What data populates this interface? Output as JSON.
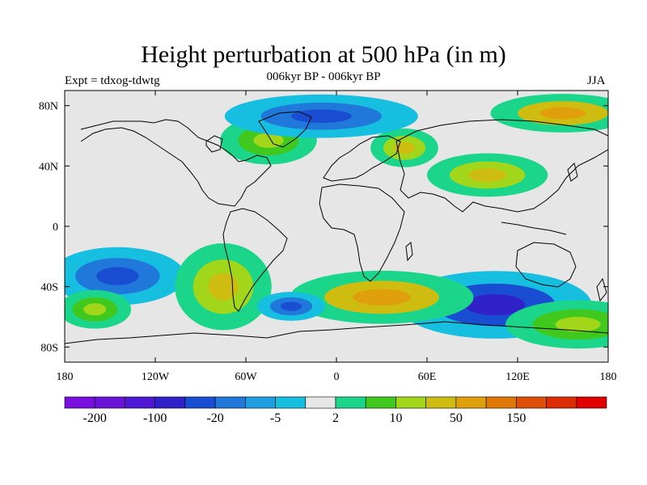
{
  "title": "Height perturbation at 500 hPa (in m)",
  "subtitle_left": "Expt = tdxog-tdwtg",
  "subtitle_center": "006kyr BP - 006kyr BP",
  "subtitle_right": "JJA",
  "map": {
    "projection": "cylindrical equidistant",
    "background_color": "#e6e6e6",
    "lat_ticks": [
      "80N",
      "40N",
      "0",
      "40S",
      "80S"
    ],
    "lon_ticks": [
      "180",
      "120W",
      "60W",
      "0",
      "60E",
      "120E",
      "180"
    ],
    "lat_range": [
      -90,
      90
    ],
    "lon_range": [
      -180,
      180
    ]
  },
  "colorbar": {
    "colors": [
      "#7a10e0",
      "#6a14d8",
      "#5018d4",
      "#3022c8",
      "#1a4ed2",
      "#2078da",
      "#1e9ee0",
      "#16bee0",
      "#e6e6e6",
      "#1ad58a",
      "#40c81e",
      "#a2d61a",
      "#cebc10",
      "#e0a00c",
      "#e07808",
      "#de5008",
      "#dc2c04",
      "#e00000"
    ],
    "tick_labels": [
      "-200",
      "-100",
      "-20",
      "-5",
      "2",
      "10",
      "50",
      "150"
    ]
  },
  "chart_data": {
    "type": "heatmap",
    "title": "Height perturbation at 500 hPa (in m)",
    "subtitle": "006kyr BP - 006kyr BP",
    "season": "JJA",
    "experiment": "tdxog-tdwtg",
    "x_ticks": [
      "180",
      "120W",
      "60W",
      "0",
      "60E",
      "120E",
      "180"
    ],
    "y_ticks": [
      "80N",
      "40N",
      "0",
      "40S",
      "80S"
    ],
    "colorbar_labels": [
      "-200",
      "-100",
      "-20",
      "-5",
      "2",
      "10",
      "50",
      "150"
    ],
    "features": [
      {
        "lon": -145,
        "lat": -33,
        "value": -40,
        "rx": 28,
        "ry": 12
      },
      {
        "lon": 105,
        "lat": -52,
        "value": -60,
        "rx": 40,
        "ry": 14
      },
      {
        "lon": 30,
        "lat": -47,
        "value": 60,
        "rx": 38,
        "ry": 11
      },
      {
        "lon": -75,
        "lat": -40,
        "value": 25,
        "rx": 20,
        "ry": 18
      },
      {
        "lon": 150,
        "lat": 75,
        "value": 80,
        "rx": 30,
        "ry": 8
      },
      {
        "lon": 45,
        "lat": 52,
        "value": 25,
        "rx": 14,
        "ry": 8
      },
      {
        "lon": 100,
        "lat": 34,
        "value": 20,
        "rx": 25,
        "ry": 9
      },
      {
        "lon": -45,
        "lat": 57,
        "value": 15,
        "rx": 20,
        "ry": 10
      },
      {
        "lon": -10,
        "lat": 73,
        "value": -30,
        "rx": 40,
        "ry": 9
      },
      {
        "lon": -30,
        "lat": -53,
        "value": -25,
        "rx": 14,
        "ry": 6
      },
      {
        "lon": 160,
        "lat": -65,
        "value": 15,
        "rx": 30,
        "ry": 10
      },
      {
        "lon": -160,
        "lat": -55,
        "value": 15,
        "rx": 15,
        "ry": 8
      }
    ]
  }
}
